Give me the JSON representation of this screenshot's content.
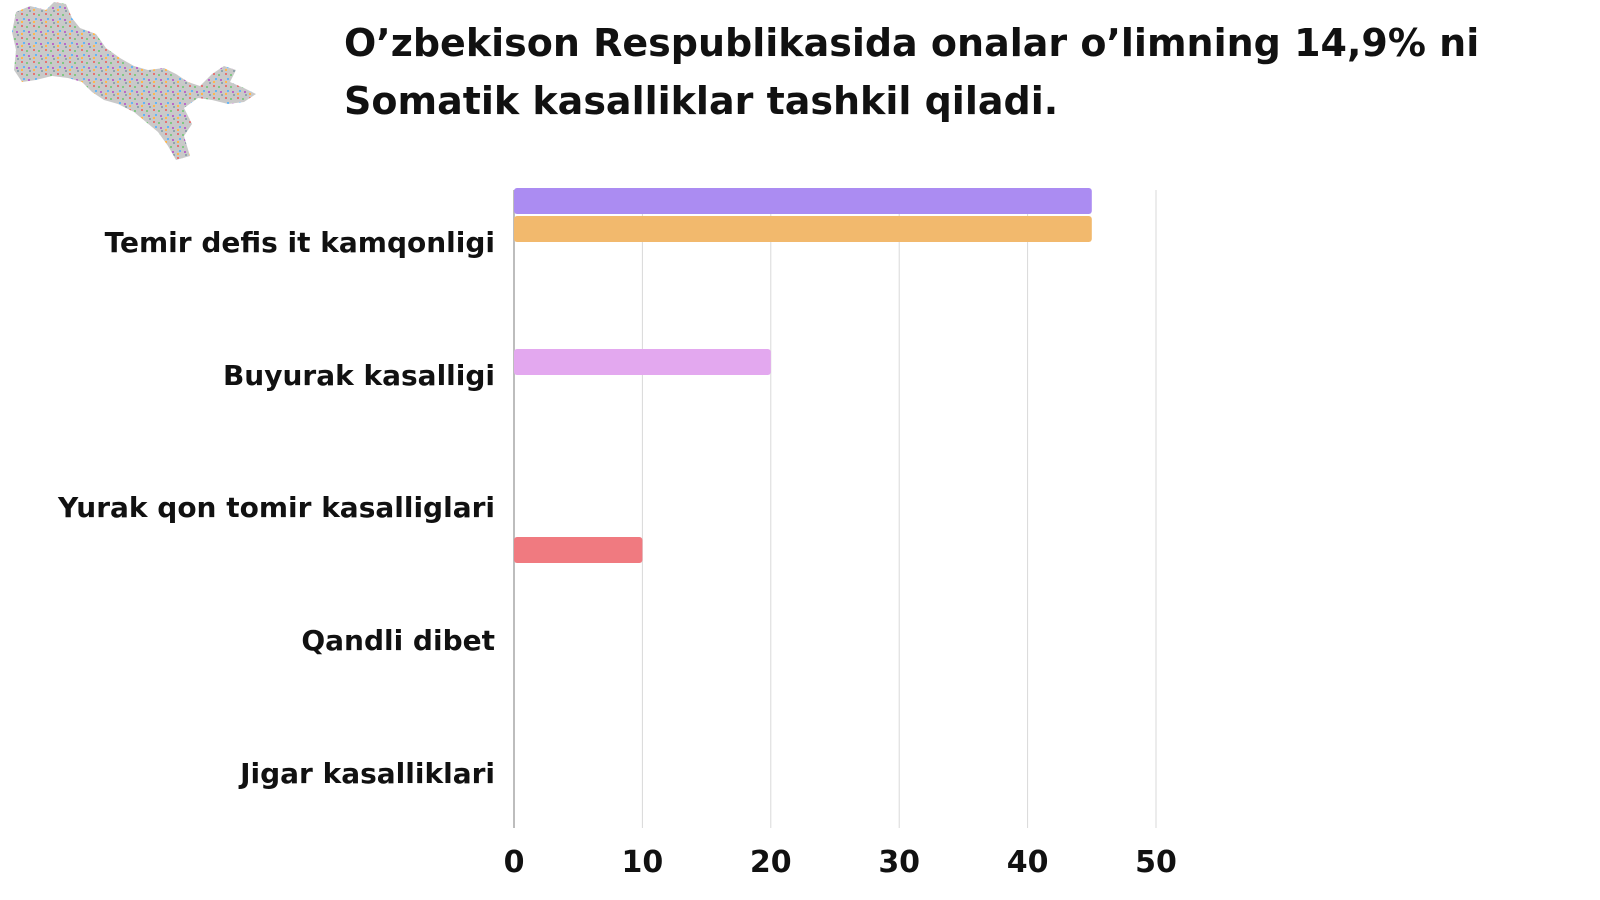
{
  "colors": {
    "background": "#ffffff",
    "text": "#111111",
    "grid": "#d9d9d9",
    "map_dots": [
      "#e57373",
      "#81c784",
      "#64b5f6",
      "#ba68c8",
      "#ffb74d",
      "#90a4ae"
    ]
  },
  "logo": {
    "icon": "uzbekistan-map-icon"
  },
  "chart_data": {
    "type": "bar",
    "orientation": "horizontal",
    "title_lines": [
      "O’zbekison Respublikasida onalar o’limning 14,9% ni",
      "Somatik kasalliklar tashkil qiladi."
    ],
    "categories": [
      "Temir defis it kamqonligi",
      "Buyurak kasalligi",
      "Yurak qon tomir kasalliglari",
      "Qandli dibet",
      "Jigar kasalliklari"
    ],
    "bars": [
      {
        "category": 0,
        "slot": 0,
        "value": 45,
        "color": "#ab8cf2"
      },
      {
        "category": 0,
        "slot": 1,
        "value": 45,
        "color": "#f2b96d"
      },
      {
        "category": 1,
        "slot": 1,
        "value": 20,
        "color": "#e3a8ef"
      },
      {
        "category": 2,
        "slot": 2,
        "value": 10,
        "color": "#f07a80"
      }
    ],
    "xlim": [
      0,
      50
    ],
    "xticks": [
      "0",
      "10",
      "20",
      "30",
      "40",
      "50"
    ],
    "grid": true,
    "legend": "none"
  }
}
